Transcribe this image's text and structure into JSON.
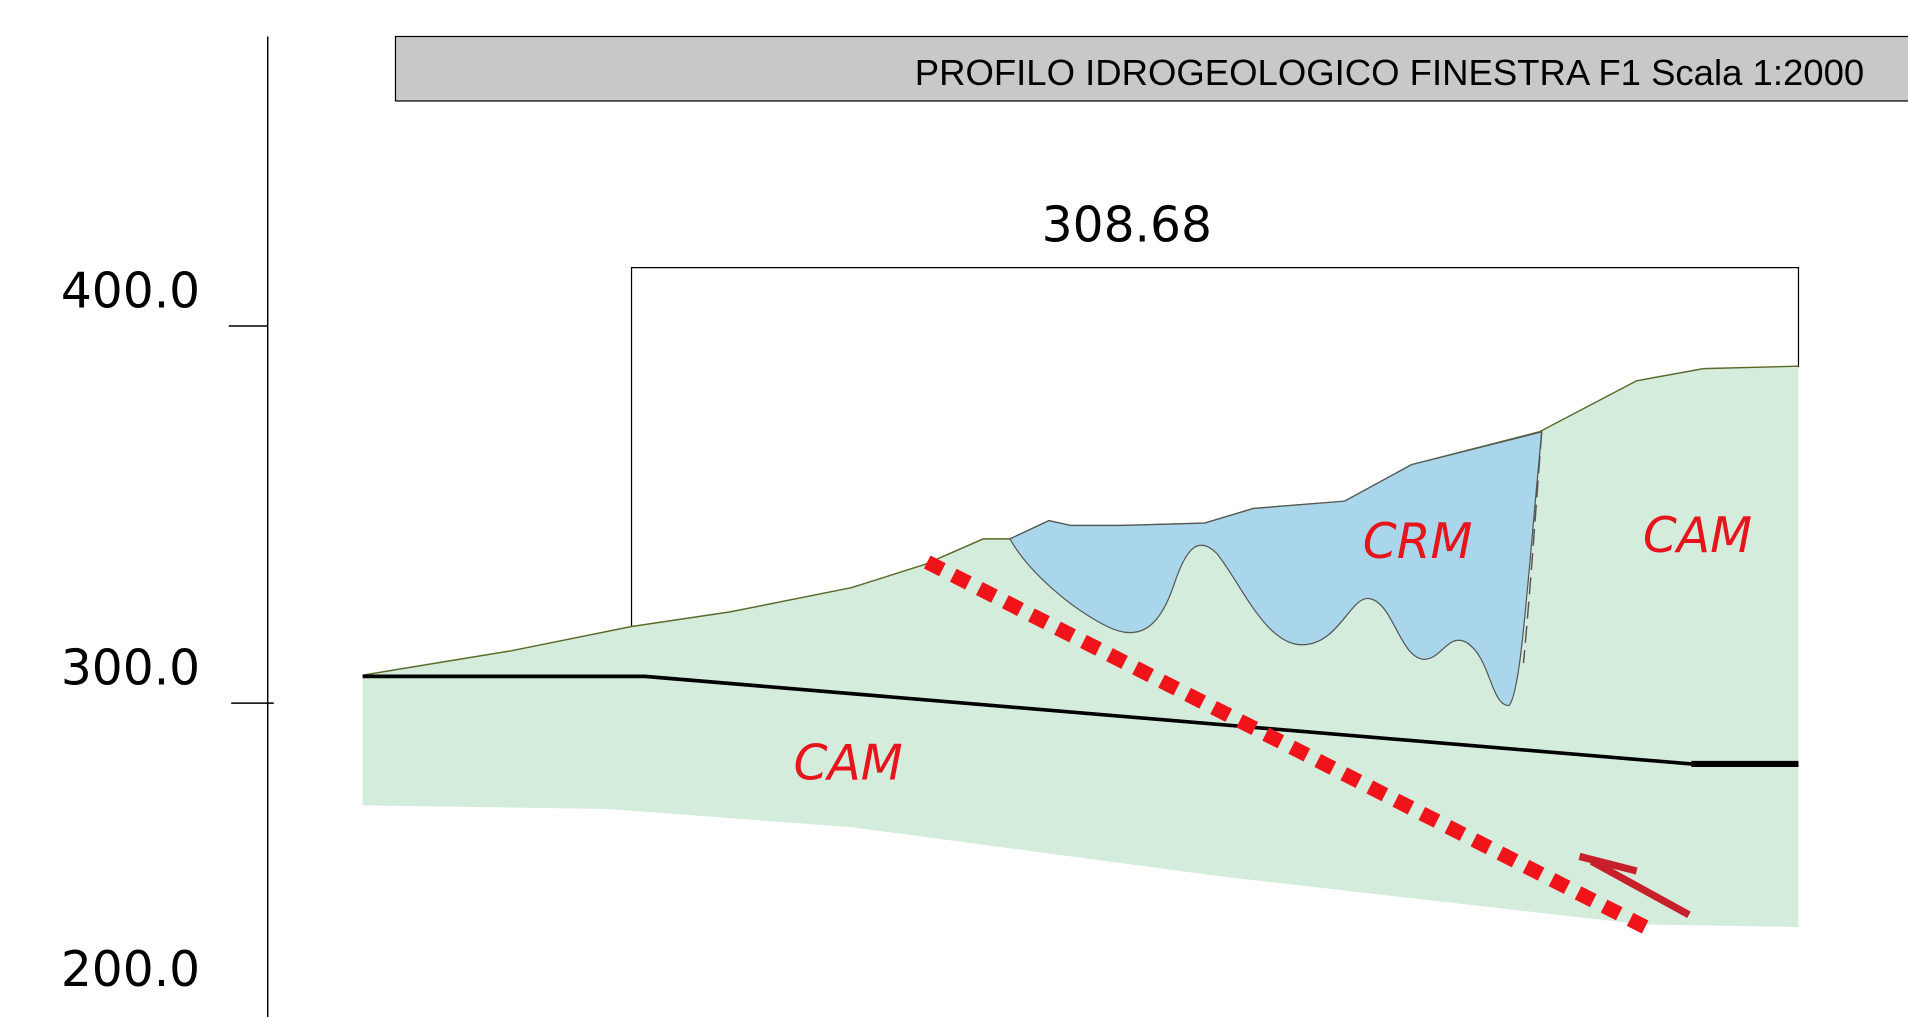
{
  "header": {
    "title": "PROFILO IDROGEOLOGICO FINESTRA F1 Scala 1:2000"
  },
  "elevation_labels": [
    "400.0",
    "300.0",
    "200.0"
  ],
  "dimension": "308.68",
  "units": {
    "crm": "CRM",
    "cam_upper": "CAM",
    "cam_lower": "CAM"
  }
}
